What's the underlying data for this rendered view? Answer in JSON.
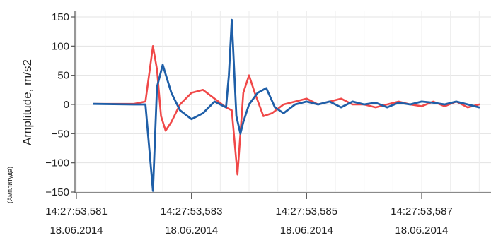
{
  "chart_data": {
    "type": "line",
    "title": "",
    "ylabel": "Amplitude, m/s2",
    "ylabel_sub": "(Амплитуда)",
    "xlabel": "",
    "ylim": [
      -150,
      150
    ],
    "y_ticks": [
      -150,
      -100,
      -50,
      0,
      50,
      100,
      150
    ],
    "x_ticks": [
      {
        "time": "14:27:53,581",
        "date": "18.06.2014"
      },
      {
        "time": "14:27:53,583",
        "date": "18.06.2014"
      },
      {
        "time": "14:27:53,585",
        "date": "18.06.2014"
      },
      {
        "time": "14:27:53,587",
        "date": "18.06.2014"
      }
    ],
    "xlim_ms": [
      53.5805,
      53.588
    ],
    "grid": true,
    "legend": "none",
    "series": [
      {
        "color": "#f04848",
        "x": [
          53.5813,
          53.582,
          53.5822,
          53.58233,
          53.5824,
          53.58247,
          53.58255,
          53.58265,
          53.5828,
          53.583,
          53.5832,
          53.5834,
          53.5836,
          53.5837,
          53.5838,
          53.5839,
          53.584,
          53.5841,
          53.58425,
          53.5844,
          53.5846,
          53.5848,
          53.585,
          53.5852,
          53.5854,
          53.5856,
          53.5858,
          53.586,
          53.5862,
          53.5864,
          53.5866,
          53.5868,
          53.587,
          53.5872,
          53.5874,
          53.5876,
          53.5878,
          53.588
        ],
        "y": [
          1,
          1,
          5,
          100,
          60,
          -20,
          -45,
          -30,
          0,
          20,
          25,
          10,
          -5,
          -10,
          -120,
          20,
          50,
          20,
          -20,
          -15,
          0,
          5,
          10,
          0,
          5,
          10,
          0,
          0,
          -5,
          0,
          5,
          0,
          -3,
          5,
          -3,
          5,
          -5,
          0
        ]
      },
      {
        "color": "#1f5fa8",
        "x": [
          53.5813,
          53.582,
          53.5822,
          53.58233,
          53.5824,
          53.5825,
          53.58265,
          53.5828,
          53.583,
          53.5832,
          53.5834,
          53.5836,
          53.58365,
          53.5837,
          53.58378,
          53.58385,
          53.5839,
          53.584,
          53.58415,
          53.5843,
          53.58445,
          53.5846,
          53.5848,
          53.585,
          53.5852,
          53.5854,
          53.5856,
          53.5858,
          53.586,
          53.5862,
          53.5864,
          53.5866,
          53.5868,
          53.587,
          53.5872,
          53.5874,
          53.5876,
          53.5878,
          53.588
        ],
        "y": [
          1,
          0,
          0,
          -148,
          30,
          68,
          20,
          -10,
          -25,
          -15,
          5,
          -5,
          50,
          145,
          -20,
          -50,
          -30,
          0,
          20,
          28,
          -5,
          -15,
          0,
          5,
          0,
          5,
          -5,
          5,
          0,
          3,
          -5,
          3,
          0,
          5,
          3,
          0,
          5,
          0,
          -5
        ]
      }
    ]
  }
}
